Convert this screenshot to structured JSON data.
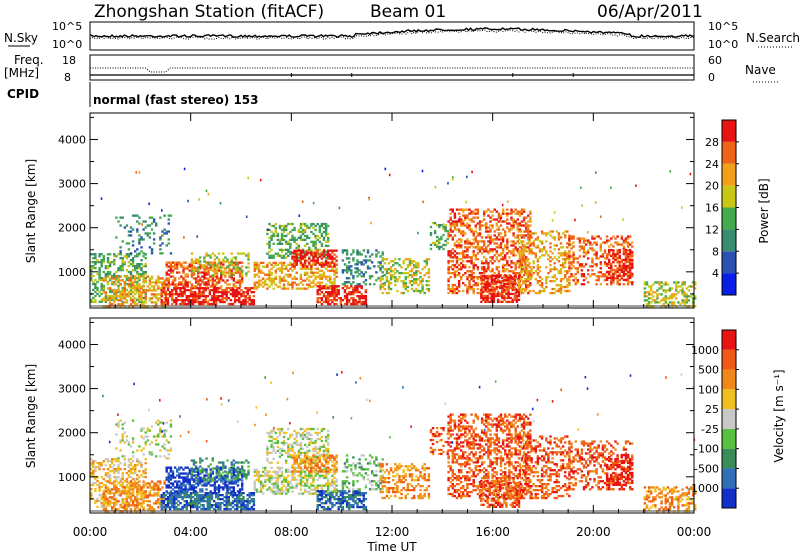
{
  "header": {
    "title": "Zhongshan Station (fitACF)",
    "beam": "Beam 01",
    "date": "06/Apr/2011"
  },
  "noise_panel": {
    "left_label": "N.Sky",
    "right_label": "N.Search",
    "left_ticks": [
      "10^5",
      "10^0"
    ],
    "right_ticks": [
      "10^5",
      "10^0"
    ]
  },
  "freq_panel": {
    "left_label_1": "Freq.",
    "left_label_2": "[MHz]",
    "left_ticks": [
      "18",
      "8"
    ],
    "right_label": "Nave",
    "right_ticks": [
      "60",
      "0"
    ]
  },
  "cpid": {
    "label": "CPID",
    "text": "normal (fast stereo) 153"
  },
  "chart_data": [
    {
      "type": "heatmap",
      "name": "power",
      "ylabel": "Slant Range [km]",
      "yticks": [
        1000,
        2000,
        3000,
        4000
      ],
      "ylim": [
        180,
        4600
      ],
      "xlim": [
        0,
        24
      ],
      "colorbar": {
        "label": "Power [dB]",
        "ticks": [
          "4",
          "8",
          "12",
          "16",
          "20",
          "24",
          "28"
        ],
        "colors": [
          "#0a1ee6",
          "#2a50b0",
          "#3a8c6e",
          "#44aa4e",
          "#c8c814",
          "#f2a01a",
          "#f06418",
          "#e81414"
        ]
      }
    },
    {
      "type": "heatmap",
      "name": "velocity",
      "ylabel": "Slant Range [km]",
      "yticks": [
        1000,
        2000,
        3000,
        4000
      ],
      "ylim": [
        180,
        4600
      ],
      "xlim": [
        0,
        24
      ],
      "colorbar": {
        "label": "Velocity [m s⁻¹]",
        "ticks": [
          "1000",
          "500",
          "100",
          "25",
          "-25",
          "-100",
          "-500",
          "-1000"
        ],
        "colors": [
          "#1230c8",
          "#3070b8",
          "#3a8c5a",
          "#58c040",
          "#c8c8c8",
          "#f0c020",
          "#f0881a",
          "#f05a14",
          "#e81414"
        ]
      }
    }
  ],
  "xaxis": {
    "ticks": [
      "00:00",
      "04:00",
      "08:00",
      "12:00",
      "16:00",
      "20:00",
      "00:00"
    ],
    "label": "Time UT"
  }
}
